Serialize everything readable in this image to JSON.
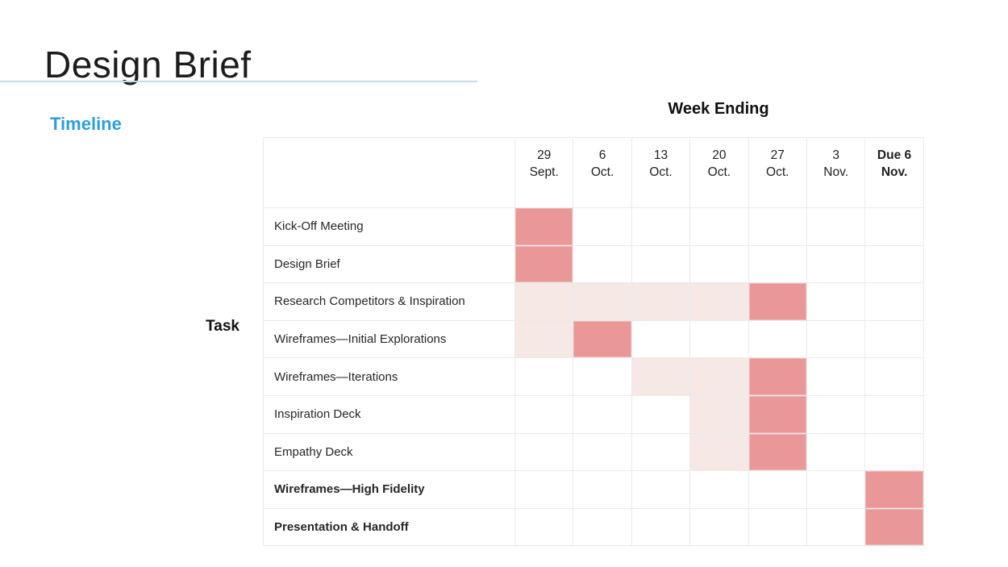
{
  "page": {
    "title": "Design Brief",
    "section_label": "Timeline"
  },
  "colors": {
    "accent_fill": "#ea9798",
    "accent_tint": "#f6e8e5",
    "section_blue": "#2d9ed9",
    "underline_blue": "#c5dbe9",
    "grid_line": "#eaeaea",
    "title_text": "#1c1c1e"
  },
  "chart_data": {
    "type": "table",
    "subtype": "gantt-grid",
    "column_axis_title": "Week Ending",
    "row_axis_title": "Task",
    "fill_colors": {
      "full": "#ea9798",
      "light": "#f6e8e5"
    },
    "columns": [
      {
        "label": "29\nSept.",
        "bold": false
      },
      {
        "label": "6\nOct.",
        "bold": false
      },
      {
        "label": "13\nOct.",
        "bold": false
      },
      {
        "label": "20\nOct.",
        "bold": false
      },
      {
        "label": "27\nOct.",
        "bold": false
      },
      {
        "label": "3\nNov.",
        "bold": false
      },
      {
        "label": "Due 6\nNov.",
        "bold": true
      }
    ],
    "rows": [
      {
        "task": "Kick-Off Meeting",
        "bold": false,
        "cells": [
          "full",
          "",
          "",
          "",
          "",
          "",
          ""
        ]
      },
      {
        "task": "Design Brief",
        "bold": false,
        "cells": [
          "full",
          "",
          "",
          "",
          "",
          "",
          ""
        ]
      },
      {
        "task": "Research Competitors & Inspiration",
        "bold": false,
        "cells": [
          "light",
          "light",
          "light",
          "light",
          "full",
          "",
          ""
        ]
      },
      {
        "task": "Wireframes—Initial Explorations",
        "bold": false,
        "cells": [
          "light",
          "full",
          "",
          "",
          "",
          "",
          ""
        ]
      },
      {
        "task": "Wireframes—Iterations",
        "bold": false,
        "cells": [
          "",
          "",
          "light",
          "light",
          "full",
          "",
          ""
        ]
      },
      {
        "task": "Inspiration Deck",
        "bold": false,
        "cells": [
          "",
          "",
          "",
          "light",
          "full",
          "",
          ""
        ]
      },
      {
        "task": "Empathy Deck",
        "bold": false,
        "cells": [
          "",
          "",
          "",
          "light",
          "full",
          "",
          ""
        ]
      },
      {
        "task": "Wireframes—High Fidelity",
        "bold": true,
        "cells": [
          "",
          "",
          "",
          "",
          "",
          "",
          "full"
        ]
      },
      {
        "task": "Presentation & Handoff",
        "bold": true,
        "cells": [
          "",
          "",
          "",
          "",
          "",
          "",
          "full"
        ]
      }
    ]
  }
}
